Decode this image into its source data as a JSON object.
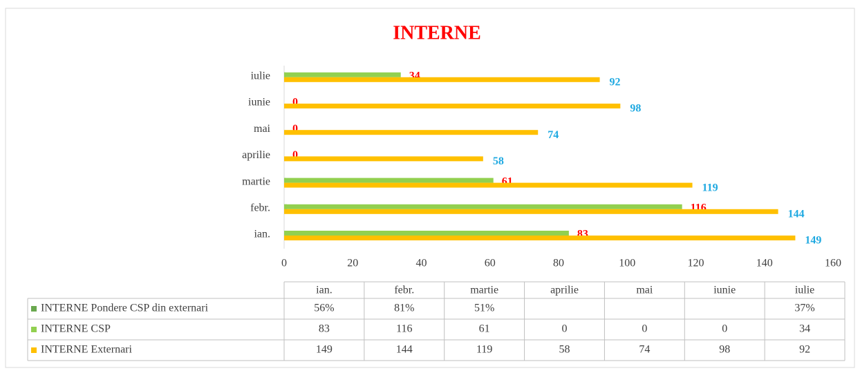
{
  "chart_data": {
    "type": "bar",
    "orientation": "horizontal",
    "title": "INTERNE",
    "categories": [
      "ian.",
      "febr.",
      "martie",
      "aprilie",
      "mai",
      "iunie",
      "iulie"
    ],
    "series": [
      {
        "name": "INTERNE Pondere CSP din externari",
        "color": "#6aa84f",
        "values": [
          0.56,
          0.81,
          0.51,
          null,
          null,
          null,
          0.37
        ],
        "value_labels": [
          "56%",
          "81%",
          "51%",
          null,
          null,
          null,
          "37%"
        ]
      },
      {
        "name": "INTERNE CSP",
        "color": "#92d050",
        "values": [
          83,
          116,
          61,
          0,
          0,
          0,
          34
        ],
        "label_color": "#ff0000"
      },
      {
        "name": "INTERNE Externari",
        "color": "#ffc000",
        "values": [
          149,
          144,
          119,
          58,
          74,
          98,
          92
        ],
        "label_color": "#1fa9e1"
      }
    ],
    "xlim": [
      0,
      160
    ],
    "xticks": [
      0,
      20,
      40,
      60,
      80,
      100,
      120,
      140,
      160
    ],
    "grid": false
  }
}
